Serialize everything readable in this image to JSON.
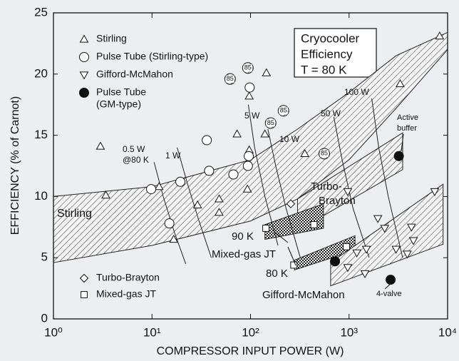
{
  "chart_data": {
    "type": "scatter",
    "title": [
      "Cryocooler",
      "Efficiency",
      "T = 80 K"
    ],
    "xlabel": "COMPRESSOR INPUT POWER  (W)",
    "ylabel": "EFFICIENCY  (% of Carnot)",
    "xscale": "log",
    "xlim": [
      1,
      10000
    ],
    "xticks": [
      {
        "value": 1,
        "label": "10⁰"
      },
      {
        "value": 10,
        "label": "10¹"
      },
      {
        "value": 100,
        "label": "10²"
      },
      {
        "value": 1000,
        "label": "10³"
      },
      {
        "value": 10000,
        "label": "10⁴"
      }
    ],
    "ylim": [
      0,
      25
    ],
    "yticks": [
      0,
      5,
      10,
      15,
      20,
      25
    ],
    "series": [
      {
        "name": [
          "Stirling"
        ],
        "marker": "triangle-up",
        "filled": false,
        "color": "#222",
        "x": [
          3,
          3.4,
          11.8,
          16.6,
          29,
          48,
          48,
          73,
          97,
          93,
          97,
          145,
          140,
          355,
          3300,
          8300
        ],
        "y": [
          14.1,
          10.1,
          10.8,
          6.5,
          9.3,
          9.8,
          8.7,
          15.1,
          18.2,
          10.6,
          13.8,
          20.1,
          15.1,
          13.5,
          19.2,
          23.1
        ]
      },
      {
        "name": [
          "Pulse Tube (Stirling-type)"
        ],
        "marker": "circle",
        "filled": false,
        "color": "#222",
        "x": [
          9.8,
          15,
          19.4,
          36,
          38,
          67,
          94,
          96,
          98
        ],
        "y": [
          10.6,
          7.8,
          11.2,
          14.6,
          12.1,
          11.8,
          12.5,
          13.3,
          18.9
        ]
      },
      {
        "name": [
          "Gifford-McMahon"
        ],
        "marker": "triangle-down",
        "filled": false,
        "color": "#222",
        "x": [
          970,
          1960,
          2300,
          1500,
          970,
          1450,
          1200,
          4300,
          3900,
          7400,
          4500,
          3000
        ],
        "y": [
          10.4,
          8.2,
          7.4,
          5.7,
          4.2,
          3.7,
          5.4,
          7.5,
          5.3,
          10.4,
          6.4,
          5.7
        ]
      },
      {
        "name": [
          "Pulse Tube",
          "(GM-type)"
        ],
        "marker": "circle",
        "filled": true,
        "color": "#222",
        "x": [
          3200,
          720,
          2640
        ],
        "y": [
          13.3,
          4.7,
          3.2
        ]
      },
      {
        "name": [
          "Turbo-Brayton"
        ],
        "marker": "diamond",
        "filled": false,
        "color": "#222",
        "x": [
          256
        ],
        "y": [
          9.4
        ]
      },
      {
        "name": [
          "Mixed-gas JT"
        ],
        "marker": "square",
        "filled": false,
        "color": "#222",
        "x": [
          143,
          440,
          275,
          940
        ],
        "y": [
          7.4,
          7.7,
          4.4,
          5.9
        ]
      }
    ],
    "labeled_points": {
      "label": "85",
      "x": [
        62,
        94,
        160,
        216,
        560
      ],
      "y": [
        19.6,
        20.5,
        16.0,
        17.0,
        13.5
      ]
    },
    "band": {
      "x": [
        1,
        10,
        100,
        300,
        1000,
        3000,
        10000
      ],
      "upper": [
        10,
        10.8,
        13,
        15.5,
        18.5,
        21.5,
        23.4
      ],
      "lower": [
        4.6,
        6.0,
        8.0,
        9.8,
        13.0,
        17.2,
        22.0
      ]
    },
    "regions": [
      {
        "pattern": "hatch",
        "x": [
          300,
          3500,
          3500,
          300
        ],
        "y": [
          9.8,
          15.2,
          12.2,
          7.2
        ]
      },
      {
        "pattern": "check",
        "x": [
          140,
          550,
          550,
          140
        ],
        "y": [
          7.7,
          9.4,
          7.4,
          6.5
        ]
      },
      {
        "pattern": "check",
        "x": [
          280,
          1150,
          1150,
          280
        ],
        "y": [
          4.8,
          6.8,
          5.6,
          4.0
        ]
      },
      {
        "pattern": "hatch",
        "x": [
          650,
          9000,
          9000,
          650
        ],
        "y": [
          4.6,
          11.0,
          6.1,
          2.7
        ]
      }
    ],
    "iso_lines": [
      {
        "label": "0.5 W",
        "sublabel": "@80 K",
        "x": [
          10.5,
          13,
          17,
          22
        ],
        "y": [
          12.8,
          10,
          7,
          4.5
        ]
      },
      {
        "label": "1 W",
        "x": [
          18,
          23,
          30,
          40
        ],
        "y": [
          14,
          11,
          8,
          5
        ]
      },
      {
        "label": "5 W",
        "x": [
          95,
          110,
          140,
          190
        ],
        "y": [
          17.5,
          14,
          10,
          6
        ]
      },
      {
        "label": "10 W",
        "x": [
          150,
          180,
          230,
          320
        ],
        "y": [
          15.5,
          12.5,
          9,
          5
        ]
      },
      {
        "label": "50 W",
        "x": [
          700,
          850,
          1100,
          1600
        ],
        "y": [
          16.5,
          13,
          9,
          5
        ]
      },
      {
        "label": "100 W",
        "x": [
          1700,
          2000,
          2500,
          3500
        ],
        "y": [
          18,
          14,
          10,
          5
        ]
      }
    ],
    "annotations": [
      "Stirling",
      "Turbo-",
      "Brayton",
      "90 K",
      "Mixed-gas JT",
      "80 K",
      "Gifford-McMahon",
      "Active",
      "buffer",
      "4-valve"
    ]
  }
}
